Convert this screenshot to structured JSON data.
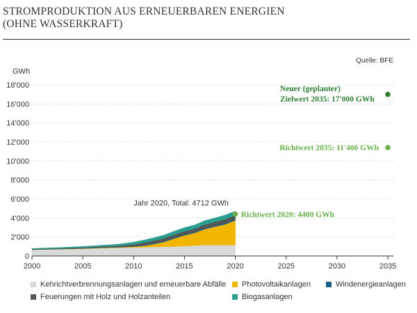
{
  "header": {
    "title_line1": "STROMPRODUKTION AUS ERNEUERBAREN ENERGIEN",
    "title_line2": "(OHNE WASSERKRAFT)"
  },
  "source": "Quelle: BFE",
  "chart_data": {
    "type": "area",
    "title": "STROMPRODUKTION AUS ERNEUERBAREN ENERGIEN (OHNE WASSERKRAFT)",
    "ylabel": "GWh",
    "xlabel": "",
    "xlim": [
      2000,
      2035
    ],
    "ylim": [
      0,
      18000
    ],
    "x_ticks": [
      "2000",
      "2005",
      "2010",
      "2015",
      "2020",
      "2025",
      "2030",
      "2035"
    ],
    "y_ticks": [
      "0",
      "2'000",
      "4'000",
      "6'000",
      "8'000",
      "10'000",
      "12'000",
      "14'000",
      "16'000",
      "18'000"
    ],
    "x": [
      2000,
      2001,
      2002,
      2003,
      2004,
      2005,
      2006,
      2007,
      2008,
      2009,
      2010,
      2011,
      2012,
      2013,
      2014,
      2015,
      2016,
      2017,
      2018,
      2019,
      2020
    ],
    "series": [
      {
        "name": "Kehrichtverbrennungsanlagen und erneuerbare Abfälle",
        "color": "#d9d9d9",
        "values": [
          650,
          680,
          700,
          720,
          740,
          770,
          800,
          830,
          860,
          880,
          900,
          920,
          950,
          980,
          1000,
          1050,
          1100,
          1150,
          1150,
          1150,
          1150
        ]
      },
      {
        "name": "Photovoltaikanlagen",
        "color": "#f2b600",
        "values": [
          10,
          12,
          15,
          18,
          20,
          22,
          25,
          30,
          35,
          50,
          80,
          150,
          300,
          500,
          840,
          1120,
          1330,
          1680,
          1940,
          2180,
          2600
        ]
      },
      {
        "name": "Windenergieanlagen",
        "color": "#1f5f8b",
        "values": [
          3,
          5,
          5,
          5,
          8,
          10,
          15,
          20,
          20,
          25,
          37,
          70,
          88,
          90,
          100,
          110,
          110,
          130,
          120,
          150,
          145
        ]
      },
      {
        "name": "Feuerungen mit Holz und Holzanteilen",
        "color": "#555555",
        "values": [
          50,
          60,
          60,
          70,
          80,
          90,
          100,
          110,
          120,
          150,
          200,
          250,
          280,
          300,
          300,
          320,
          320,
          340,
          360,
          380,
          380
        ]
      },
      {
        "name": "Biogasanlagen",
        "color": "#2a9d8f",
        "values": [
          60,
          70,
          80,
          90,
          100,
          110,
          120,
          140,
          160,
          200,
          240,
          280,
          300,
          330,
          360,
          380,
          400,
          420,
          430,
          440,
          437
        ]
      }
    ],
    "annotations": [
      {
        "label": "Jahr 2020, Total: 4712 GWh",
        "x": 2020,
        "y": 4712
      },
      {
        "label": "Richtwert 2020: 4400 GWh",
        "x": 2020,
        "y": 4400,
        "color": "#6ab04c"
      },
      {
        "label": "Richtwert 2035: 11'400 GWh",
        "x": 2035,
        "y": 11400,
        "color": "#6ab04c"
      },
      {
        "label_line1": "Neuer (geplanter)",
        "label_line2": "Zielwert 2035: 17'000 GWh",
        "x": 2035,
        "y": 17000,
        "color": "#2e7d32"
      }
    ],
    "legend_position": "bottom"
  }
}
